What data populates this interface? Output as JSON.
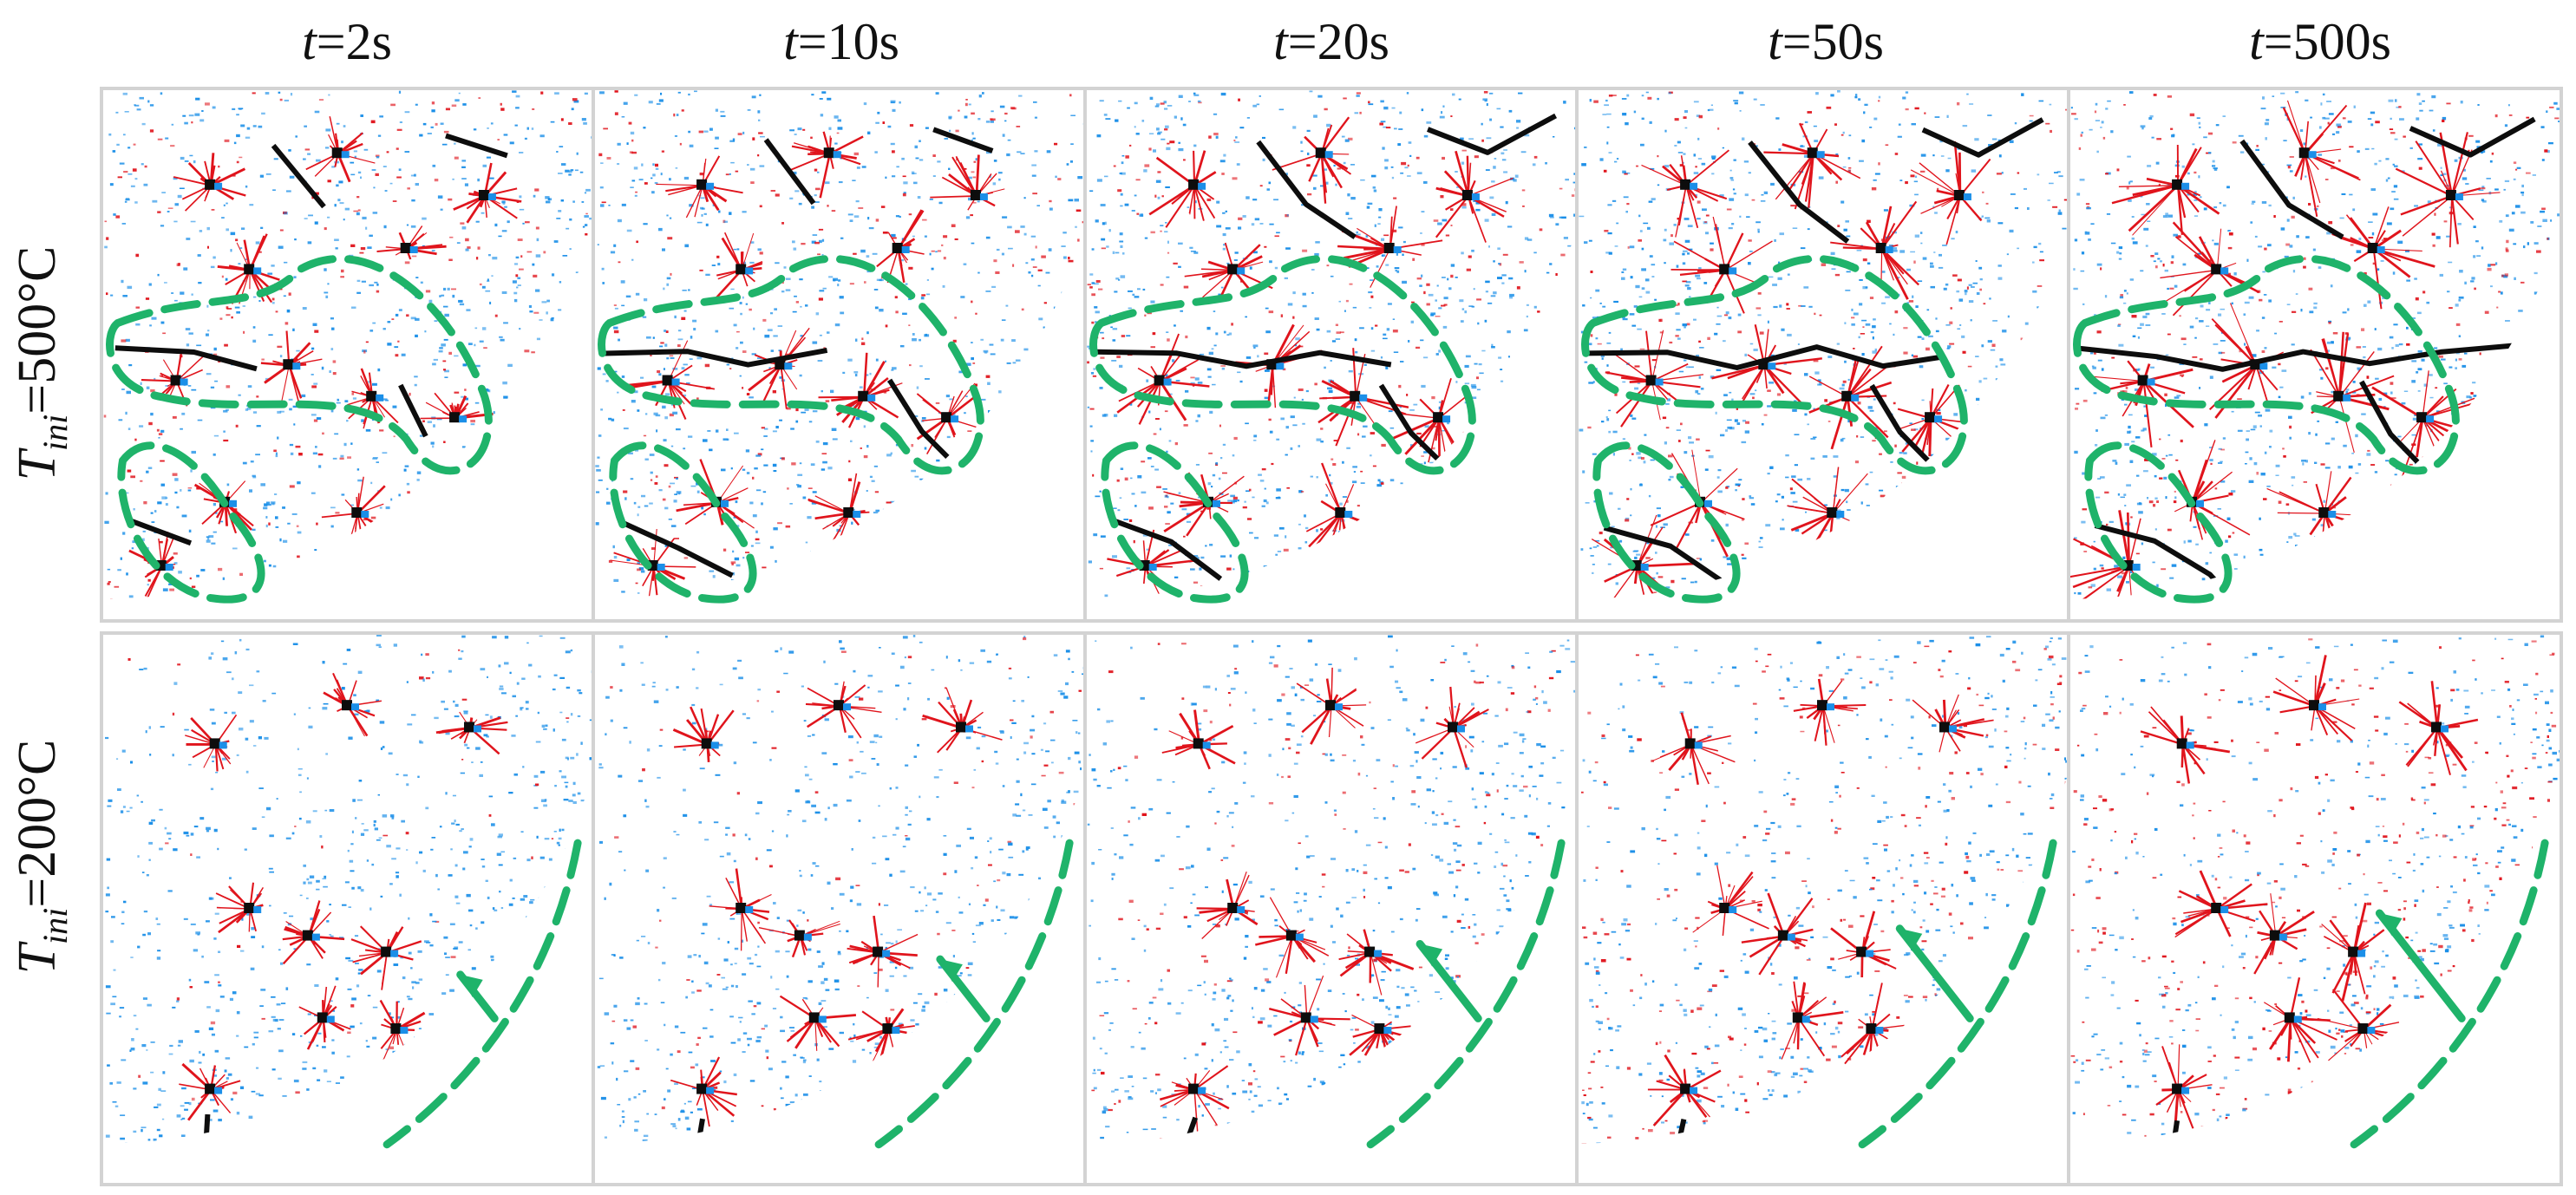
{
  "time_labels": [
    {
      "var": "t",
      "value": "=2s"
    },
    {
      "var": "t",
      "value": "=10s"
    },
    {
      "var": "t",
      "value": "=20s"
    },
    {
      "var": "t",
      "value": "=50s"
    },
    {
      "var": "t",
      "value": "=500s"
    }
  ],
  "row_labels": [
    {
      "var": "T",
      "sub": "ini",
      "value": "=500°C"
    },
    {
      "var": "T",
      "sub": "ini",
      "value": "=200°C"
    }
  ],
  "colors": {
    "tension_damage": "#e0141c",
    "compression_damage": "#1b8fe8",
    "macro_crack": "#0d0d0d",
    "highlight": "#1fb36a",
    "panel_border": "#d3d3d3"
  },
  "panels_row_500": [
    "panel-500-2s",
    "panel-500-10s",
    "panel-500-20s",
    "panel-500-50s",
    "panel-500-500s"
  ],
  "panels_row_200": [
    "panel-200-2s",
    "panel-200-10s",
    "panel-200-20s",
    "panel-200-50s",
    "panel-200-500s"
  ]
}
